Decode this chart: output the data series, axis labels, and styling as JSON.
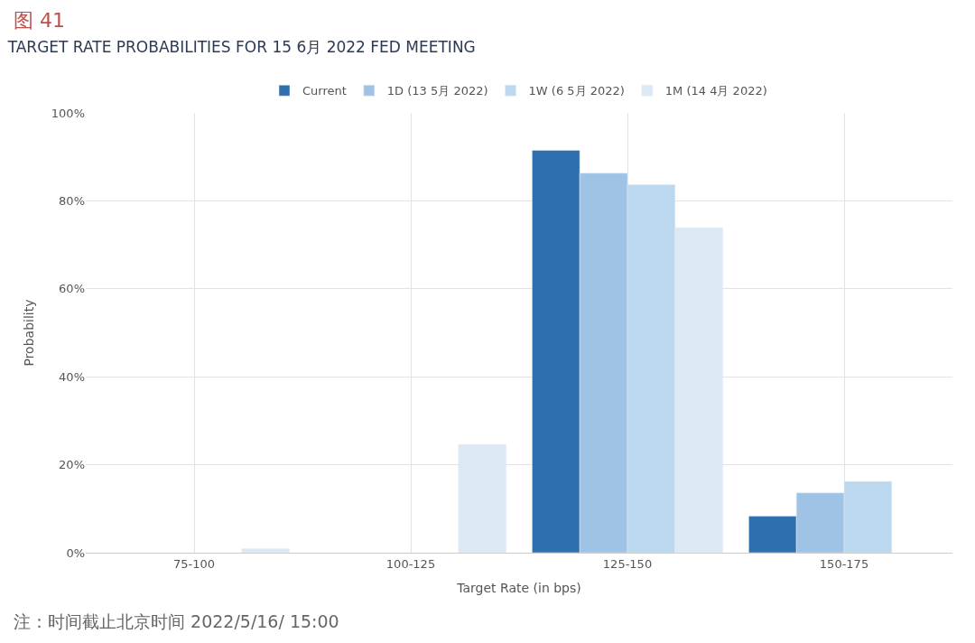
{
  "chart_data": {
    "type": "bar",
    "title": "TARGET RATE PROBABILITIES FOR 15 6月 2022 FED MEETING",
    "xlabel": "Target Rate (in bps)",
    "ylabel": "Probability",
    "categories": [
      "75-100",
      "100-125",
      "125-150",
      "150-175"
    ],
    "series": [
      {
        "name": "Current",
        "color": "#2e6fb0",
        "values": [
          null,
          null,
          91.5,
          8.3
        ]
      },
      {
        "name": "1D (13 5月 2022)",
        "color": "#9ec3e6",
        "values": [
          null,
          null,
          86.3,
          13.6
        ]
      },
      {
        "name": "1W (6 5月 2022)",
        "color": "#bcd8ef",
        "values": [
          null,
          null,
          83.7,
          16.2
        ]
      },
      {
        "name": "1M (14 4月 2022)",
        "color": "#dce9f5",
        "values": [
          0.9,
          24.6,
          73.9,
          null
        ]
      }
    ],
    "ylim": [
      0,
      100
    ],
    "yticks": [
      {
        "value": 0,
        "label": "0%"
      },
      {
        "value": 20,
        "label": "20%"
      },
      {
        "value": 40,
        "label": "40%"
      },
      {
        "value": 60,
        "label": "60%"
      },
      {
        "value": 80,
        "label": "80%"
      },
      {
        "value": 100,
        "label": "100%"
      }
    ],
    "grid": true,
    "legend": "top",
    "annotations": [
      "图 41",
      "注：时间截止北京时间 2022/5/16/ 15:00"
    ]
  }
}
